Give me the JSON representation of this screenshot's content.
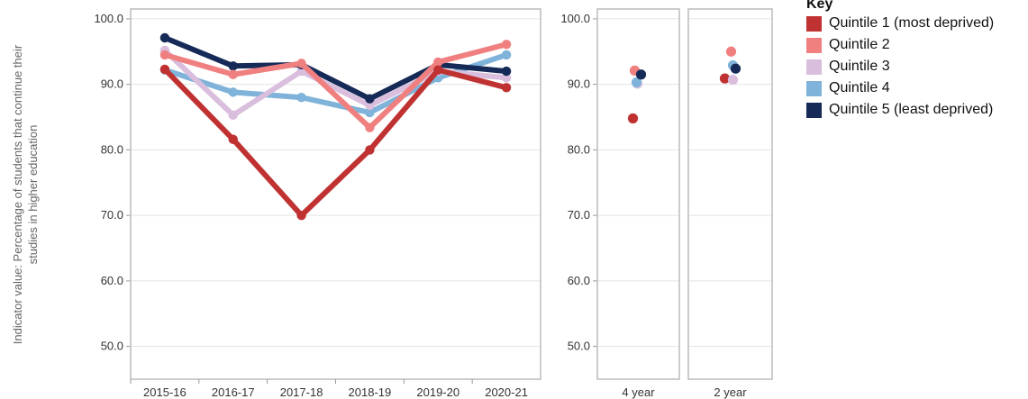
{
  "chart_data": [
    {
      "type": "line",
      "categories": [
        "2015-16",
        "2016-17",
        "2017-18",
        "2018-19",
        "2019-20",
        "2020-21"
      ],
      "ylabel_lines": [
        "Indicator value: Percentage of students that continue their",
        "studies in higher education"
      ],
      "ylim": [
        45,
        101.5
      ],
      "yticks": [
        "50.0",
        "60.0",
        "70.0",
        "80.0",
        "90.0",
        "100.0"
      ],
      "grid": true,
      "series": [
        {
          "name": "Quintile 4",
          "values": [
            92.2,
            88.8,
            88.0,
            85.7,
            91.0,
            94.5
          ]
        },
        {
          "name": "Quintile 3",
          "values": [
            95.2,
            85.3,
            92.0,
            86.8,
            92.0,
            91.0
          ]
        },
        {
          "name": "Quintile 5 (least deprived)",
          "values": [
            97.1,
            92.8,
            93.0,
            87.8,
            93.0,
            92.0
          ]
        },
        {
          "name": "Quintile 2",
          "values": [
            94.5,
            91.5,
            93.2,
            83.4,
            93.4,
            96.1
          ]
        },
        {
          "name": "Quintile 1 (most deprived)",
          "values": [
            92.3,
            81.6,
            70.0,
            80.0,
            92.2,
            89.5
          ]
        }
      ]
    },
    {
      "type": "scatter",
      "categories": [
        "4 year",
        "2 year"
      ],
      "ylim": [
        45,
        101.5
      ],
      "yticks": [
        "50.0",
        "60.0",
        "70.0",
        "80.0",
        "90.0",
        "100.0"
      ],
      "series": [
        {
          "name": "Quintile 1 (most deprived)",
          "values": [
            84.8,
            90.9
          ]
        },
        {
          "name": "Quintile 2",
          "values": [
            92.1,
            95.0
          ]
        },
        {
          "name": "Quintile 3",
          "values": [
            90.1,
            90.7
          ]
        },
        {
          "name": "Quintile 4",
          "values": [
            90.3,
            92.9
          ]
        },
        {
          "name": "Quintile 5 (least deprived)",
          "values": [
            91.5,
            92.4
          ]
        }
      ]
    }
  ],
  "legend": {
    "title": "Key",
    "position": "top-right",
    "items": [
      {
        "name": "Quintile 1 (most deprived)",
        "color": "#c03232"
      },
      {
        "name": "Quintile 2",
        "color": "#f08080"
      },
      {
        "name": "Quintile 3",
        "color": "#d9bedd"
      },
      {
        "name": "Quintile 4",
        "color": "#7fb3d9"
      },
      {
        "name": "Quintile 5 (least deprived)",
        "color": "#162a57"
      }
    ]
  }
}
